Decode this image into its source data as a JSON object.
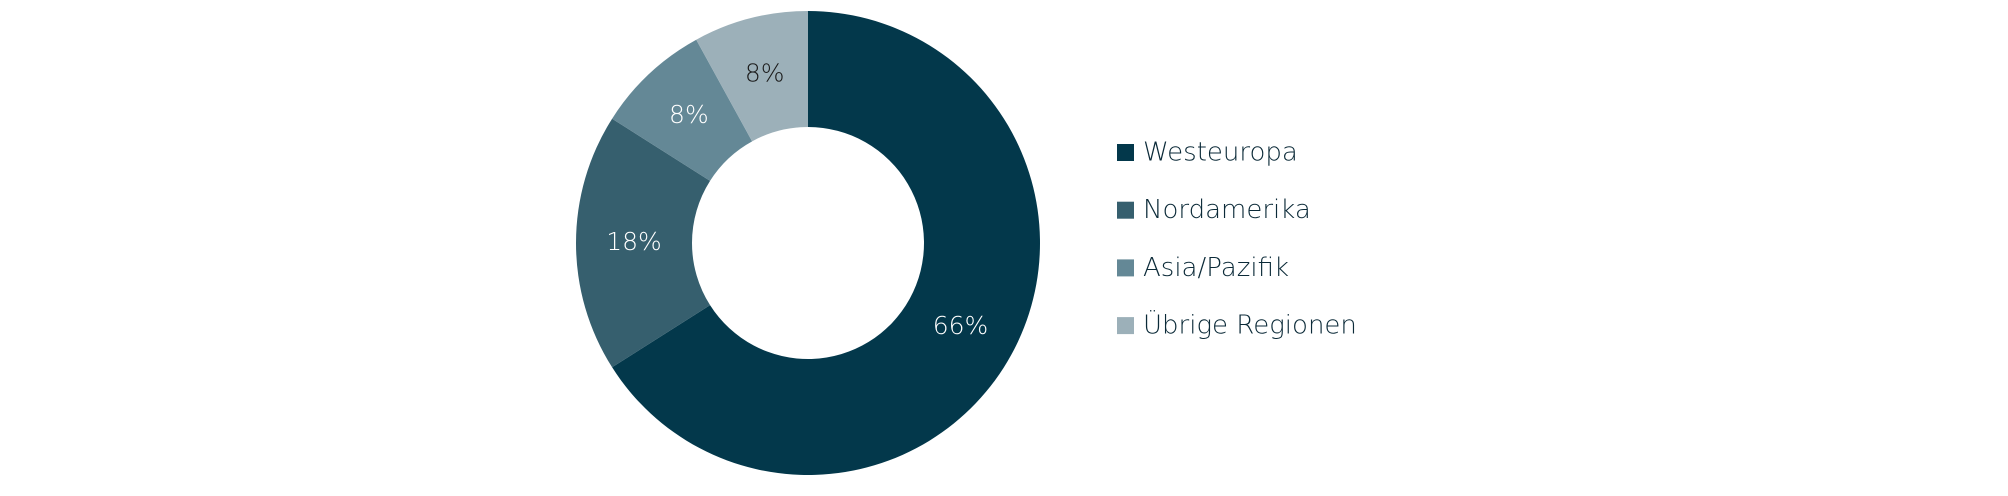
{
  "chart_data": {
    "type": "pie",
    "categories": [
      "Westeuropa",
      "Nordamerika",
      "Asia/Pazifik",
      "Übrige Regionen"
    ],
    "values": [
      66,
      18,
      8,
      8
    ],
    "value_labels": [
      "66%",
      "18%",
      "8%",
      "8%"
    ],
    "colors": [
      "#03384b",
      "#365f6e",
      "#648896",
      "#9cb0b9"
    ],
    "label_colors": [
      "#ffffff",
      "#ffffff",
      "#ffffff",
      "#1a1a1a"
    ],
    "legend": "right"
  }
}
